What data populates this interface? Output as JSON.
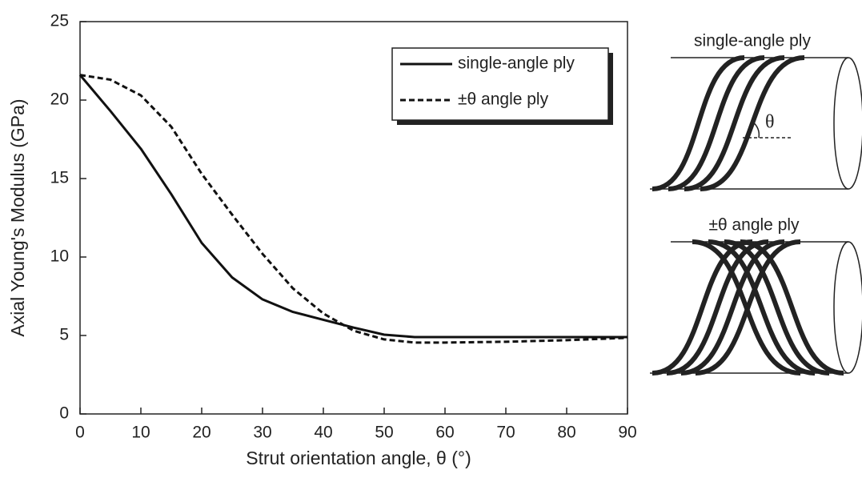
{
  "chart_data": {
    "type": "line",
    "x_label": "Strut orientation angle, θ (°)",
    "y_label": "Axial Young's Modulus (GPa)",
    "x": [
      0,
      5,
      10,
      15,
      20,
      25,
      30,
      35,
      40,
      45,
      50,
      55,
      60,
      70,
      80,
      90
    ],
    "series": [
      {
        "name": "single-angle ply",
        "color": "#111111",
        "dash": false,
        "values": [
          21.6,
          19.3,
          16.9,
          14.0,
          10.9,
          8.7,
          7.3,
          6.5,
          6.0,
          5.5,
          5.05,
          4.9,
          4.9,
          4.9,
          4.9,
          4.9
        ]
      },
      {
        "name": "±θ  angle ply",
        "color": "#111111",
        "dash": true,
        "values": [
          21.6,
          21.3,
          20.3,
          18.3,
          15.3,
          12.7,
          10.2,
          8.0,
          6.4,
          5.3,
          4.75,
          4.55,
          4.55,
          4.6,
          4.7,
          4.85
        ]
      }
    ],
    "xlim": [
      0,
      90
    ],
    "xticks": [
      0,
      10,
      20,
      30,
      40,
      50,
      60,
      70,
      80,
      90
    ],
    "ylim": [
      0,
      25
    ],
    "yticks": [
      0,
      5,
      10,
      15,
      20,
      25
    ],
    "grid": false,
    "legend": "top-right"
  },
  "diagram": {
    "top_label": "single-angle ply",
    "angle_label": "θ",
    "bottom_label": "±θ  angle ply"
  }
}
